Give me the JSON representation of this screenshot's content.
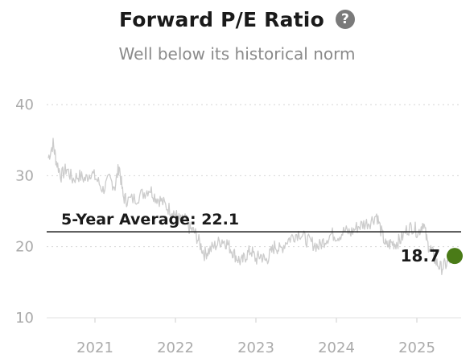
{
  "header": {
    "title": "Forward P/E Ratio",
    "help_icon": "question-circle-icon",
    "help_glyph": "?",
    "subtitle": "Well below its historical norm"
  },
  "chart_data": {
    "type": "line",
    "title": "Forward P/E Ratio",
    "subtitle": "Well below its historical norm",
    "xlabel": "",
    "ylabel": "",
    "xlim": [
      2020.4,
      2025.55
    ],
    "ylim": [
      10,
      40
    ],
    "y_ticks": [
      10,
      20,
      30,
      40
    ],
    "x_ticks": [
      2021,
      2022,
      2023,
      2024,
      2025
    ],
    "x_tick_labels": [
      "2021",
      "2022",
      "2023",
      "2024",
      "2025"
    ],
    "grid": "horizontal dotted",
    "series": [
      {
        "color": "#cccccc",
        "points": [
          [
            2020.42,
            32.5
          ],
          [
            2020.48,
            34.5
          ],
          [
            2020.52,
            32.0
          ],
          [
            2020.58,
            30.0
          ],
          [
            2020.65,
            31.0
          ],
          [
            2020.72,
            29.5
          ],
          [
            2020.8,
            30.0
          ],
          [
            2020.88,
            29.5
          ],
          [
            2020.95,
            30.5
          ],
          [
            2021.02,
            29.5
          ],
          [
            2021.1,
            28.0
          ],
          [
            2021.18,
            29.5
          ],
          [
            2021.25,
            28.5
          ],
          [
            2021.3,
            31.5
          ],
          [
            2021.35,
            27.0
          ],
          [
            2021.4,
            26.5
          ],
          [
            2021.5,
            26.8
          ],
          [
            2021.6,
            27.5
          ],
          [
            2021.68,
            28.2
          ],
          [
            2021.75,
            27.0
          ],
          [
            2021.82,
            26.5
          ],
          [
            2021.9,
            25.5
          ],
          [
            2021.97,
            25.0
          ],
          [
            2022.03,
            24.0
          ],
          [
            2022.08,
            23.5
          ],
          [
            2022.12,
            23.8
          ],
          [
            2022.18,
            22.5
          ],
          [
            2022.24,
            22.0
          ],
          [
            2022.3,
            20.5
          ],
          [
            2022.36,
            19.0
          ],
          [
            2022.42,
            19.5
          ],
          [
            2022.5,
            20.2
          ],
          [
            2022.58,
            21.0
          ],
          [
            2022.64,
            20.5
          ],
          [
            2022.7,
            19.5
          ],
          [
            2022.76,
            18.5
          ],
          [
            2022.82,
            17.8
          ],
          [
            2022.88,
            18.8
          ],
          [
            2022.94,
            19.5
          ],
          [
            2023.0,
            18.2
          ],
          [
            2023.06,
            18.8
          ],
          [
            2023.12,
            18.0
          ],
          [
            2023.18,
            19.0
          ],
          [
            2023.24,
            20.2
          ],
          [
            2023.3,
            19.5
          ],
          [
            2023.38,
            20.8
          ],
          [
            2023.46,
            21.5
          ],
          [
            2023.54,
            22.0
          ],
          [
            2023.62,
            21.0
          ],
          [
            2023.7,
            20.5
          ],
          [
            2023.78,
            20.0
          ],
          [
            2023.86,
            21.0
          ],
          [
            2023.94,
            21.8
          ],
          [
            2024.02,
            21.5
          ],
          [
            2024.1,
            22.2
          ],
          [
            2024.18,
            22.0
          ],
          [
            2024.26,
            22.8
          ],
          [
            2024.34,
            23.2
          ],
          [
            2024.42,
            23.5
          ],
          [
            2024.5,
            24.5
          ],
          [
            2024.56,
            22.0
          ],
          [
            2024.62,
            20.0
          ],
          [
            2024.68,
            20.5
          ],
          [
            2024.74,
            20.5
          ],
          [
            2024.8,
            21.0
          ],
          [
            2024.88,
            22.5
          ],
          [
            2024.95,
            22.8
          ],
          [
            2025.02,
            22.0
          ],
          [
            2025.08,
            23.5
          ],
          [
            2025.13,
            20.5
          ],
          [
            2025.18,
            19.5
          ],
          [
            2025.24,
            17.8
          ],
          [
            2025.3,
            17.0
          ],
          [
            2025.36,
            17.5
          ],
          [
            2025.42,
            18.2
          ]
        ]
      }
    ],
    "average_line": {
      "value": 22.1,
      "label": "5-Year Average: 22.1",
      "color": "#1a1a1a"
    },
    "last_point": {
      "x": 2025.47,
      "y": 18.7,
      "label": "18.7",
      "color": "#4a7b17"
    }
  }
}
